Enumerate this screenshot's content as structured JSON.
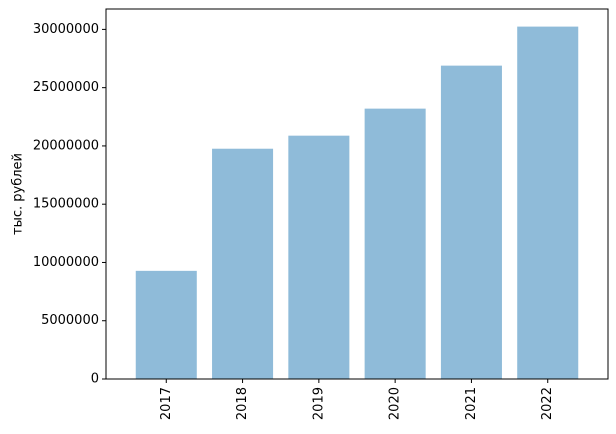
{
  "chart_data": {
    "type": "bar",
    "y_label": "тыс. рублей",
    "categories": [
      "2017",
      "2018",
      "2019",
      "2020",
      "2021",
      "2022"
    ],
    "values": [
      9280000,
      19760000,
      20880000,
      23200000,
      26890000,
      30240000
    ],
    "color": "#8fbbd9",
    "ylim": [
      0,
      31750000
    ],
    "yticks": [
      0,
      5000000,
      10000000,
      15000000,
      20000000,
      25000000,
      30000000
    ]
  }
}
